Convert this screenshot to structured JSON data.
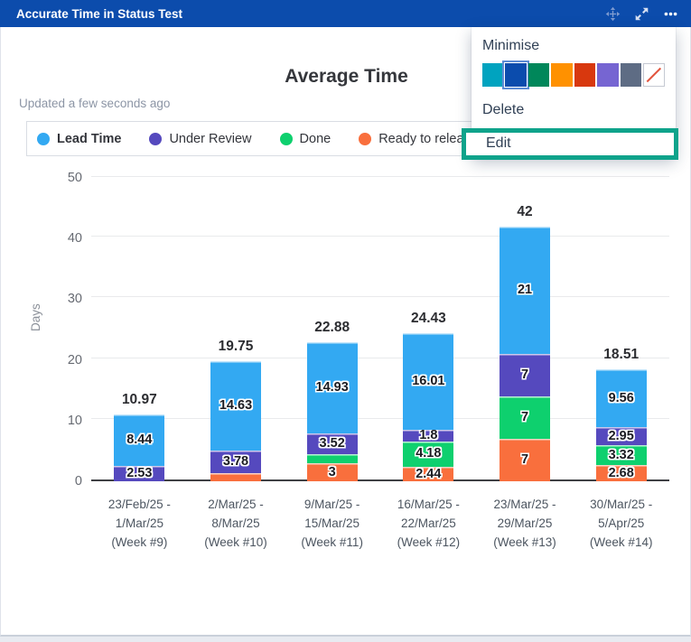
{
  "header": {
    "title": "Accurate Time in Status Test"
  },
  "menu": {
    "minimise_label": "Minimise",
    "delete_label": "Delete",
    "edit_label": "Edit",
    "edit_highlight_color": "#0FA38B",
    "swatches": [
      {
        "name": "teal",
        "color": "#00A3BF",
        "selected": false
      },
      {
        "name": "dark-blue",
        "color": "#0B4CAD",
        "selected": true
      },
      {
        "name": "green",
        "color": "#00875A",
        "selected": false
      },
      {
        "name": "orange",
        "color": "#FF9100",
        "selected": false
      },
      {
        "name": "red",
        "color": "#D8380E",
        "selected": false
      },
      {
        "name": "purple",
        "color": "#7665D2",
        "selected": false
      },
      {
        "name": "slate",
        "color": "#5E6C84",
        "selected": false
      },
      {
        "name": "none",
        "color": "#FFFFFF",
        "selected": false,
        "diagonal": "#E2543E"
      }
    ]
  },
  "chart_data": {
    "type": "bar",
    "stacked": true,
    "title": "Average Time",
    "subtitle": "Updated a few seconds ago",
    "ylabel": "Days",
    "ylim": [
      0,
      50
    ],
    "yticks": [
      0,
      10,
      20,
      30,
      40,
      50
    ],
    "grid": true,
    "legend_position": "top",
    "legend": [
      {
        "key": "lead_time",
        "label": "Lead Time",
        "color": "#33A9F2",
        "bold": true
      },
      {
        "key": "under_review",
        "label": "Under Review",
        "color": "#5549BE",
        "bold": false
      },
      {
        "key": "done",
        "label": "Done",
        "color": "#0ED06E",
        "bold": false
      },
      {
        "key": "ready_to_release",
        "label": "Ready to release",
        "color": "#F96F3D",
        "bold": false
      }
    ],
    "stack_order_bottom_to_top": [
      "ready_to_release",
      "done",
      "under_review",
      "lead_time"
    ],
    "bars": [
      {
        "label_lines": [
          "23/Feb/25 -",
          "1/Mar/25",
          "(Week #9)"
        ],
        "total": 10.97,
        "total_label": "10.97",
        "segments": [
          {
            "series": "under_review",
            "value": 2.53,
            "label": "2.53"
          },
          {
            "series": "lead_time",
            "value": 8.44,
            "label": "8.44"
          }
        ]
      },
      {
        "label_lines": [
          "2/Mar/25 -",
          "8/Mar/25",
          "(Week #10)"
        ],
        "total": 19.75,
        "total_label": "19.75",
        "segments": [
          {
            "series": "ready_to_release",
            "value": 1.34,
            "label": ""
          },
          {
            "series": "under_review",
            "value": 3.78,
            "label": "3.78"
          },
          {
            "series": "lead_time",
            "value": 14.63,
            "label": "14.63"
          }
        ]
      },
      {
        "label_lines": [
          "9/Mar/25 -",
          "15/Mar/25",
          "(Week #11)"
        ],
        "total": 22.88,
        "total_label": "22.88",
        "segments": [
          {
            "series": "ready_to_release",
            "value": 3,
            "label": "3"
          },
          {
            "series": "done",
            "value": 1.43,
            "label": ""
          },
          {
            "series": "under_review",
            "value": 3.52,
            "label": "3.52"
          },
          {
            "series": "lead_time",
            "value": 14.93,
            "label": "14.93"
          }
        ]
      },
      {
        "label_lines": [
          "16/Mar/25 -",
          "22/Mar/25",
          "(Week #12)"
        ],
        "total": 24.43,
        "total_label": "24.43",
        "segments": [
          {
            "series": "ready_to_release",
            "value": 2.44,
            "label": "2.44"
          },
          {
            "series": "done",
            "value": 4.18,
            "label": "4.18"
          },
          {
            "series": "under_review",
            "value": 1.8,
            "label": "1.8"
          },
          {
            "series": "lead_time",
            "value": 16.01,
            "label": "16.01"
          }
        ]
      },
      {
        "label_lines": [
          "23/Mar/25 -",
          "29/Mar/25",
          "(Week #13)"
        ],
        "total": 42,
        "total_label": "42",
        "segments": [
          {
            "series": "ready_to_release",
            "value": 7,
            "label": "7"
          },
          {
            "series": "done",
            "value": 7,
            "label": "7"
          },
          {
            "series": "under_review",
            "value": 7,
            "label": "7"
          },
          {
            "series": "lead_time",
            "value": 21,
            "label": "21"
          }
        ]
      },
      {
        "label_lines": [
          "30/Mar/25 -",
          "5/Apr/25",
          "(Week #14)"
        ],
        "total": 18.51,
        "total_label": "18.51",
        "segments": [
          {
            "series": "ready_to_release",
            "value": 2.68,
            "label": "2.68"
          },
          {
            "series": "done",
            "value": 3.32,
            "label": "3.32"
          },
          {
            "series": "under_review",
            "value": 2.95,
            "label": "2.95"
          },
          {
            "series": "lead_time",
            "value": 9.56,
            "label": "9.56"
          }
        ]
      }
    ]
  }
}
